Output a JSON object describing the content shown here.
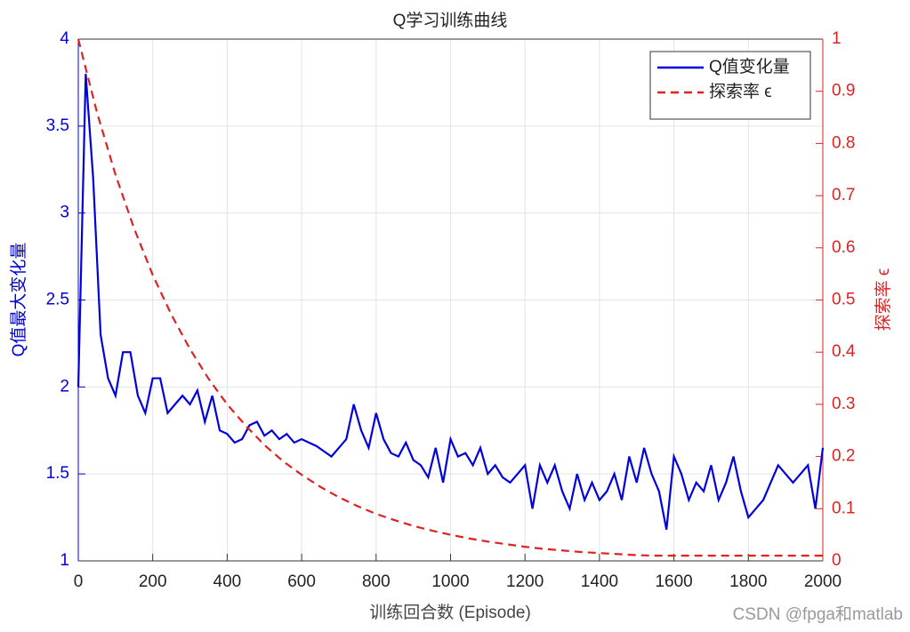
{
  "chart_data": {
    "type": "line",
    "title": "Q学习训练曲线",
    "xlabel": "训练回合数 (Episode)",
    "ylabel": "Q值最大变化量",
    "y2label": "探索率 ϵ",
    "xlim": [
      0,
      2000
    ],
    "xticks": [
      0,
      200,
      400,
      600,
      800,
      1000,
      1200,
      1400,
      1600,
      1800,
      2000
    ],
    "ylim": [
      1,
      4
    ],
    "yticks": [
      1,
      1.5,
      2,
      2.5,
      3,
      3.5,
      4
    ],
    "y2lim": [
      0,
      1
    ],
    "y2ticks": [
      0,
      0.1,
      0.2,
      0.3,
      0.4,
      0.5,
      0.6,
      0.7,
      0.8,
      0.9,
      1
    ],
    "grid": true,
    "legend": "upper right",
    "watermark": "CSDN @fpga和matlab",
    "series": [
      {
        "name": "Q值变化量",
        "color": "#0000dd",
        "axis": "y",
        "dash": false,
        "x": [
          0,
          20,
          40,
          60,
          80,
          100,
          120,
          140,
          160,
          180,
          200,
          220,
          240,
          260,
          280,
          300,
          320,
          340,
          360,
          380,
          400,
          420,
          440,
          460,
          480,
          500,
          520,
          540,
          560,
          580,
          600,
          620,
          640,
          660,
          680,
          700,
          720,
          740,
          760,
          780,
          800,
          820,
          840,
          860,
          880,
          900,
          920,
          940,
          960,
          980,
          1000,
          1020,
          1040,
          1060,
          1080,
          1100,
          1120,
          1140,
          1160,
          1180,
          1200,
          1220,
          1240,
          1260,
          1280,
          1300,
          1320,
          1340,
          1360,
          1380,
          1400,
          1420,
          1440,
          1460,
          1480,
          1500,
          1520,
          1540,
          1560,
          1580,
          1600,
          1620,
          1640,
          1660,
          1680,
          1700,
          1720,
          1740,
          1760,
          1780,
          1800,
          1820,
          1840,
          1860,
          1880,
          1900,
          1920,
          1940,
          1960,
          1980,
          2000
        ],
        "values": [
          2.0,
          3.8,
          3.2,
          2.3,
          2.05,
          1.95,
          2.2,
          2.2,
          1.95,
          1.85,
          2.05,
          2.05,
          1.85,
          1.9,
          1.95,
          1.9,
          1.98,
          1.8,
          1.95,
          1.75,
          1.73,
          1.68,
          1.7,
          1.78,
          1.8,
          1.72,
          1.75,
          1.7,
          1.73,
          1.68,
          1.7,
          1.68,
          1.66,
          1.63,
          1.6,
          1.65,
          1.7,
          1.9,
          1.75,
          1.65,
          1.85,
          1.7,
          1.62,
          1.6,
          1.68,
          1.58,
          1.55,
          1.48,
          1.65,
          1.45,
          1.7,
          1.6,
          1.62,
          1.55,
          1.65,
          1.5,
          1.55,
          1.48,
          1.45,
          1.5,
          1.55,
          1.3,
          1.55,
          1.45,
          1.55,
          1.4,
          1.3,
          1.5,
          1.35,
          1.45,
          1.35,
          1.4,
          1.5,
          1.35,
          1.6,
          1.45,
          1.65,
          1.5,
          1.4,
          1.18,
          1.6,
          1.5,
          1.35,
          1.45,
          1.4,
          1.55,
          1.35,
          1.45,
          1.6,
          1.4,
          1.25,
          1.3,
          1.35,
          1.45,
          1.55,
          1.5,
          1.45,
          1.5,
          1.55,
          1.3,
          1.65
        ]
      },
      {
        "name": "探索率 ϵ",
        "color": "#dd2222",
        "axis": "y2",
        "dash": true,
        "x": [
          0,
          50,
          100,
          150,
          200,
          250,
          300,
          350,
          400,
          450,
          500,
          550,
          600,
          650,
          700,
          750,
          800,
          850,
          900,
          950,
          1000,
          1050,
          1100,
          1150,
          1200,
          1250,
          1300,
          1350,
          1400,
          1450,
          1500,
          1550,
          1600,
          1650,
          1700,
          1750,
          1800,
          1850,
          1900,
          1950,
          2000
        ],
        "values": [
          1,
          0.86,
          0.74,
          0.637,
          0.548,
          0.472,
          0.406,
          0.349,
          0.3,
          0.259,
          0.222,
          0.191,
          0.165,
          0.142,
          0.122,
          0.105,
          0.09,
          0.078,
          0.067,
          0.058,
          0.05,
          0.043,
          0.037,
          0.032,
          0.027,
          0.023,
          0.02,
          0.017,
          0.015,
          0.013,
          0.011,
          0.01,
          0.01,
          0.01,
          0.01,
          0.01,
          0.01,
          0.01,
          0.01,
          0.01,
          0.01
        ]
      }
    ]
  }
}
